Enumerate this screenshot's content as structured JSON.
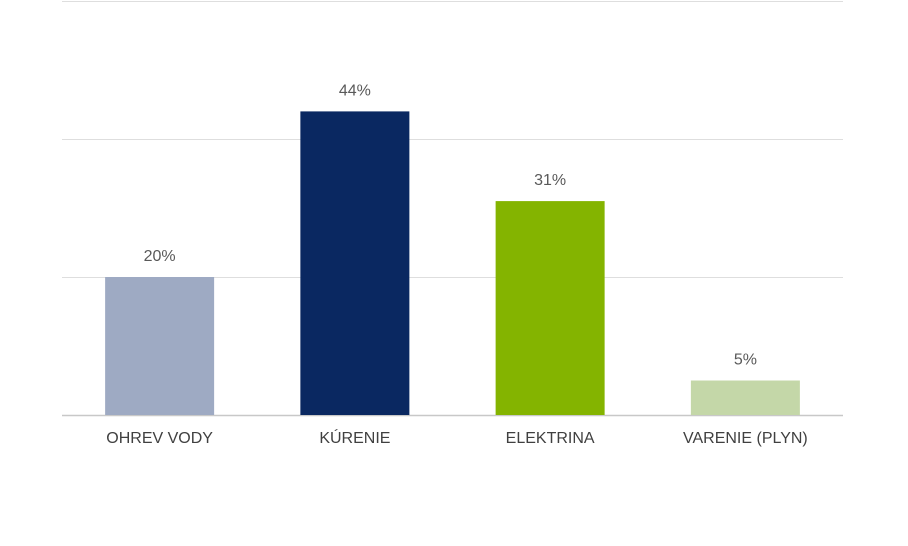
{
  "chart_data": {
    "type": "bar",
    "title": "",
    "xlabel": "",
    "ylabel": "",
    "categories": [
      "OHREV VODY",
      "KÚRENIE",
      "ELEKTRINA",
      "VARENIE (PLYN)"
    ],
    "values": [
      20,
      44,
      31,
      5
    ],
    "data_labels": [
      "20%",
      "44%",
      "31%",
      "5%"
    ],
    "colors": [
      "#9eaac3",
      "#0a2861",
      "#84b400",
      "#c4d7a8"
    ],
    "ylim": [
      0,
      60
    ],
    "gridlines": [
      0,
      20,
      40,
      60
    ],
    "grid": true,
    "y_axis_labels_visible": false,
    "legend": "none"
  }
}
